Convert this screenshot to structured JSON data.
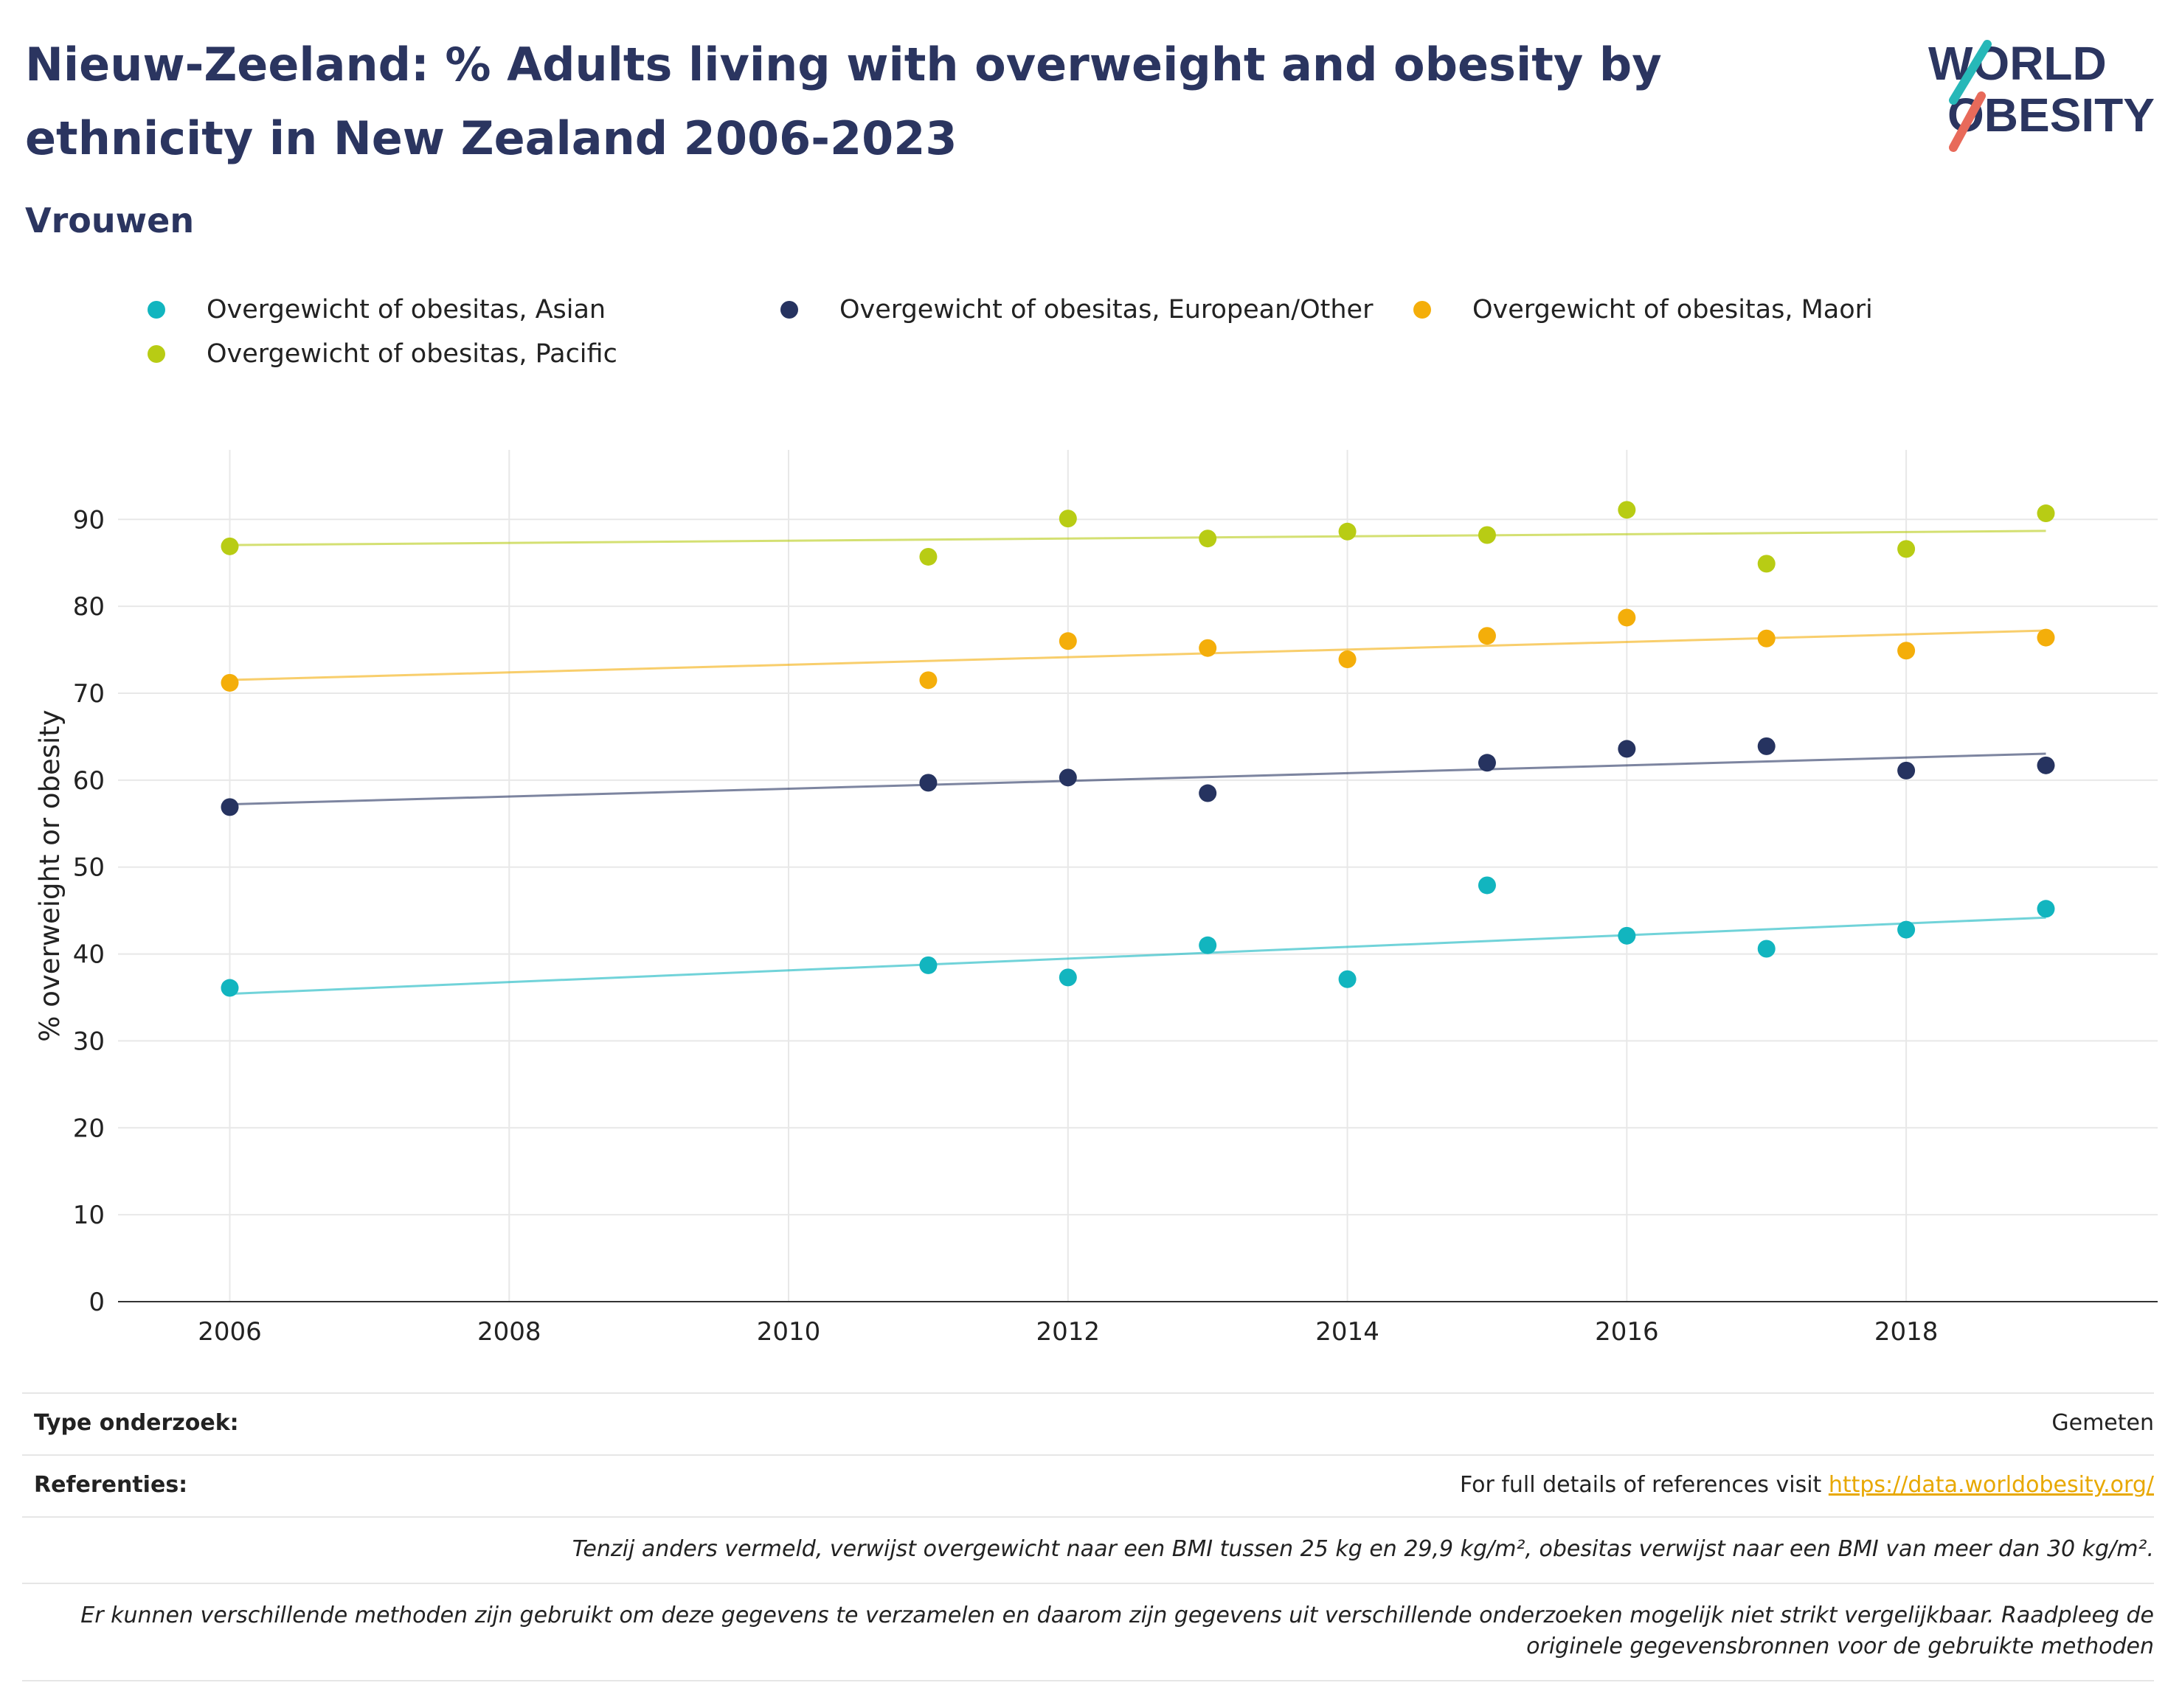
{
  "header": {
    "title": "Nieuw-Zeeland: % Adults living with overweight and obesity by ethnicity in New Zealand 2006-2023",
    "subtitle": "Vrouwen",
    "logo_line1": "WORLD",
    "logo_line2": "OBESITY"
  },
  "colors": {
    "asian": "#12b5bf",
    "european": "#263360",
    "maori": "#f4ae0a",
    "pacific": "#b8cc14",
    "title": "#2b3560",
    "link": "#e8a800"
  },
  "chart_data": {
    "type": "scatter",
    "title": "Nieuw-Zeeland: % Adults living with overweight and obesity by ethnicity in New Zealand 2006-2023",
    "subtitle": "Vrouwen",
    "xlabel": "",
    "ylabel": "% overweight or obesity",
    "xlim": [
      2005.2,
      2019.8
    ],
    "ylim": [
      0,
      98
    ],
    "xticks": [
      2006,
      2008,
      2010,
      2012,
      2014,
      2016,
      2018
    ],
    "yticks": [
      0,
      10,
      20,
      30,
      40,
      50,
      60,
      70,
      80,
      90
    ],
    "grid": true,
    "legend_position": "top",
    "trendlines": true,
    "series": [
      {
        "name": "Overgewicht of obesitas, Asian",
        "color": "#12b5bf",
        "x": [
          2006,
          2011,
          2012,
          2013,
          2014,
          2015,
          2016,
          2017,
          2018,
          2019
        ],
        "y": [
          36.1,
          38.7,
          37.3,
          41.0,
          37.1,
          47.9,
          42.1,
          40.6,
          42.8,
          45.2
        ]
      },
      {
        "name": "Overgewicht of obesitas, European/Other",
        "color": "#263360",
        "x": [
          2006,
          2011,
          2012,
          2013,
          2015,
          2016,
          2017,
          2018,
          2019
        ],
        "y": [
          56.9,
          59.7,
          60.3,
          58.5,
          62.0,
          63.6,
          63.9,
          61.1,
          61.7
        ]
      },
      {
        "name": "Overgewicht of obesitas, Maori",
        "color": "#f4ae0a",
        "x": [
          2006,
          2011,
          2012,
          2013,
          2014,
          2015,
          2016,
          2017,
          2018,
          2019
        ],
        "y": [
          71.2,
          71.5,
          76.0,
          75.2,
          73.9,
          76.6,
          78.7,
          76.3,
          74.9,
          76.4
        ]
      },
      {
        "name": "Overgewicht of obesitas, Pacific",
        "color": "#b8cc14",
        "x": [
          2006,
          2011,
          2012,
          2013,
          2014,
          2015,
          2016,
          2017,
          2018,
          2019
        ],
        "y": [
          86.9,
          85.7,
          90.1,
          87.8,
          88.6,
          88.2,
          91.1,
          84.9,
          86.6,
          90.7
        ]
      }
    ]
  },
  "footer": {
    "survey_label": "Type onderzoek:",
    "survey_value": "Gemeten",
    "ref_label": "Referenties:",
    "ref_text": "For full details of references visit ",
    "ref_link": "https://data.worldobesity.org/",
    "note1": "Tenzij anders vermeld, verwijst overgewicht naar een BMI tussen 25 kg en 29,9 kg/m², obesitas verwijst naar een BMI van meer dan 30 kg/m².",
    "note2": "Er kunnen verschillende methoden zijn gebruikt om deze gegevens te verzamelen en daarom zijn gegevens uit verschillende onderzoeken mogelijk niet strikt vergelijkbaar. Raadpleeg de originele gegevensbronnen voor de gebruikte methoden"
  }
}
